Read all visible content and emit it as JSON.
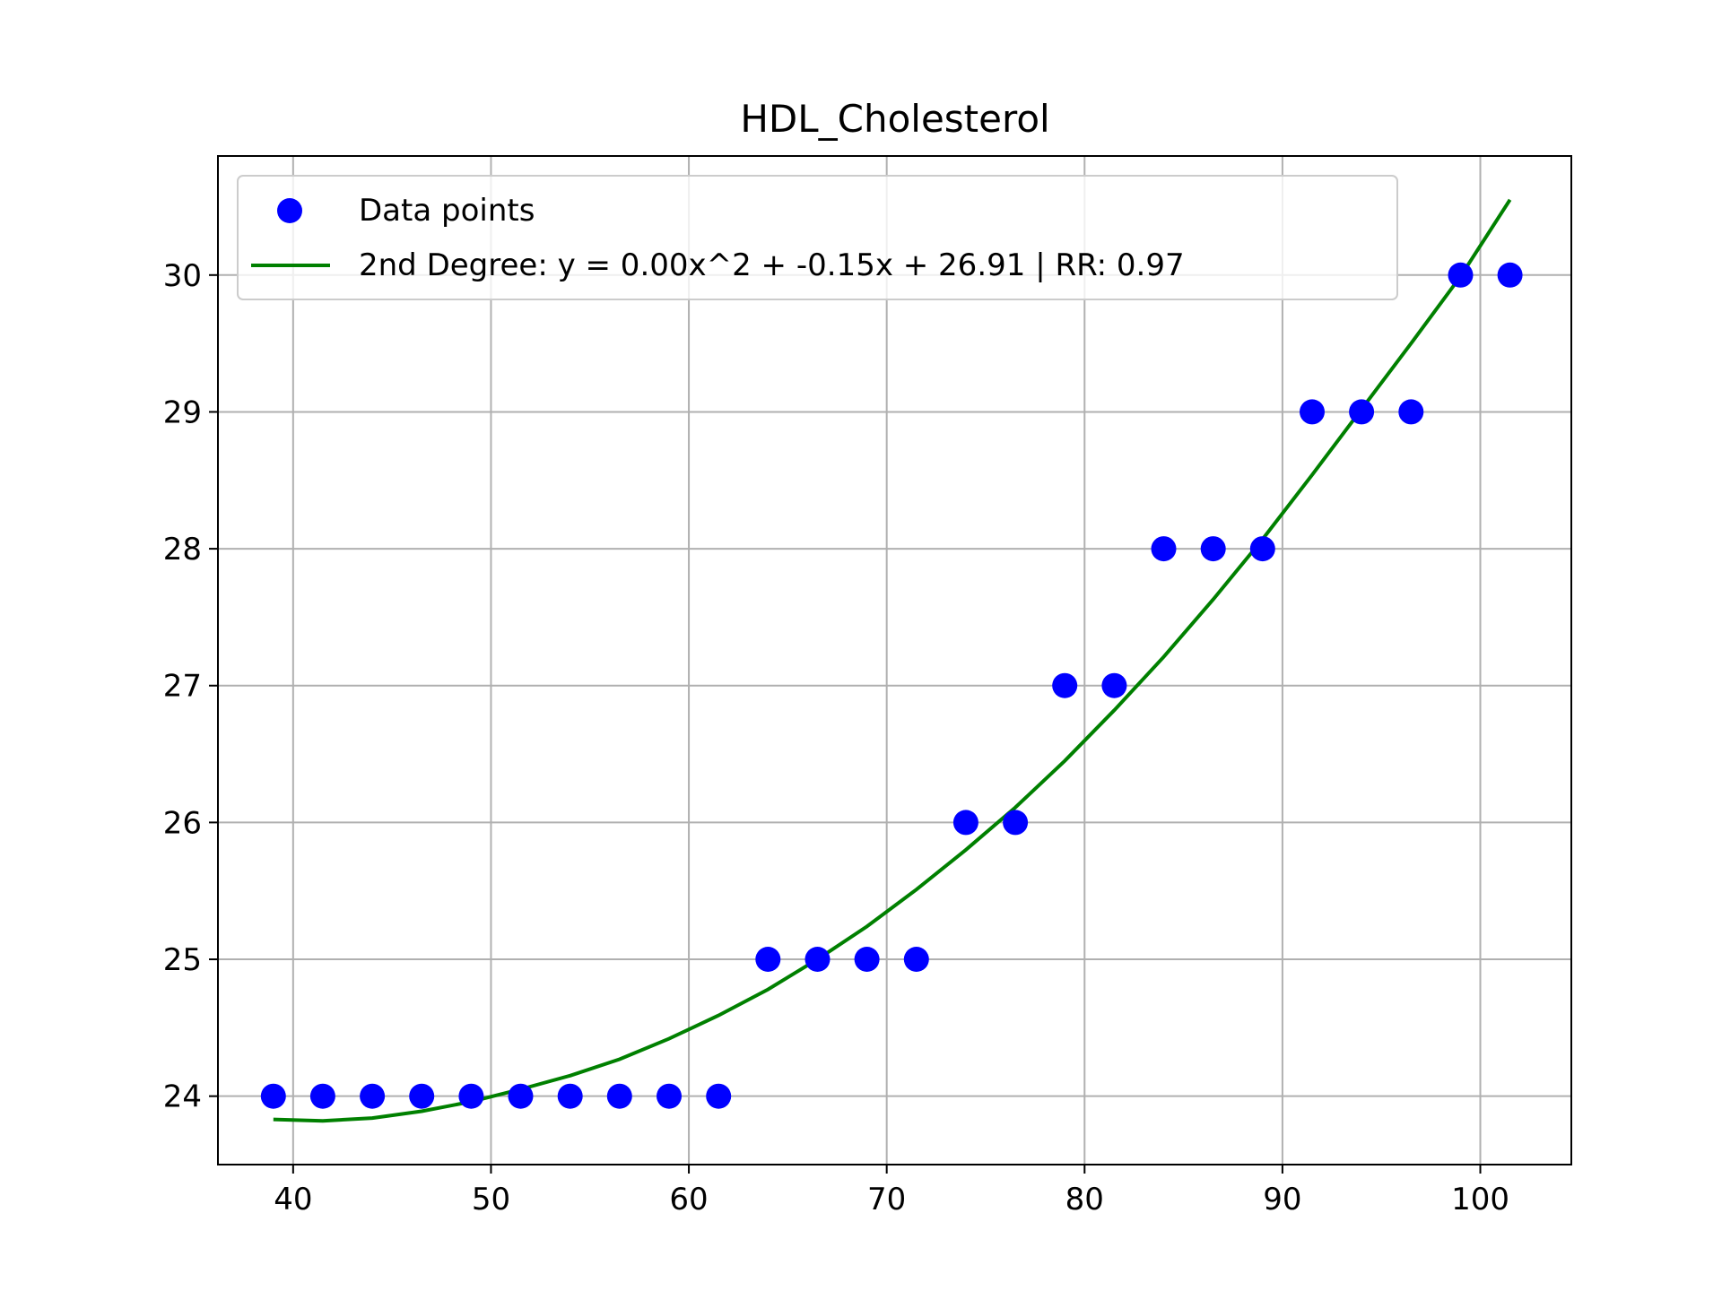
{
  "chart_data": {
    "type": "scatter",
    "title": "HDL_Cholesterol",
    "xlabel": "",
    "ylabel": "",
    "xlim": [
      36.2,
      104.6
    ],
    "ylim": [
      23.5,
      30.87
    ],
    "xticks": [
      "40",
      "50",
      "60",
      "70",
      "80",
      "90",
      "100"
    ],
    "yticks": [
      "24",
      "25",
      "26",
      "27",
      "28",
      "29",
      "30"
    ],
    "grid": true,
    "legend_position": "top-left",
    "colors": {
      "points": "#0000ff",
      "fit": "#008000",
      "grid": "#b0b0b0"
    },
    "series": [
      {
        "name": "Data points",
        "kind": "scatter",
        "x": [
          39,
          41.5,
          44,
          46.5,
          49,
          51.5,
          54,
          56.5,
          59,
          61.5,
          64,
          66.5,
          69,
          71.5,
          74,
          76.5,
          79,
          81.5,
          84,
          86.5,
          89,
          91.5,
          94,
          96.5,
          99,
          101.5
        ],
        "y": [
          24,
          24,
          24,
          24,
          24,
          24,
          24,
          24,
          24,
          24,
          25,
          25,
          25,
          25,
          26,
          26,
          27,
          27,
          28,
          28,
          28,
          29,
          29,
          29,
          30,
          30
        ]
      },
      {
        "name": "2nd Degree: y = 0.00x^2 + -0.15x + 26.91 | RR: 0.97",
        "kind": "line",
        "x": [
          39,
          41.5,
          44,
          46.5,
          49,
          51.5,
          54,
          56.5,
          59,
          61.5,
          64,
          66.5,
          69,
          71.5,
          74,
          76.5,
          79,
          81.5,
          84,
          86.5,
          89,
          91.5,
          94,
          96.5,
          99,
          101.5
        ],
        "y": [
          23.83,
          23.82,
          23.84,
          23.89,
          23.96,
          24.05,
          24.15,
          24.27,
          24.42,
          24.59,
          24.78,
          25.0,
          25.24,
          25.51,
          25.8,
          26.11,
          26.45,
          26.82,
          27.21,
          27.63,
          28.07,
          28.54,
          29.02,
          29.5,
          29.99,
          30.55
        ]
      }
    ]
  }
}
